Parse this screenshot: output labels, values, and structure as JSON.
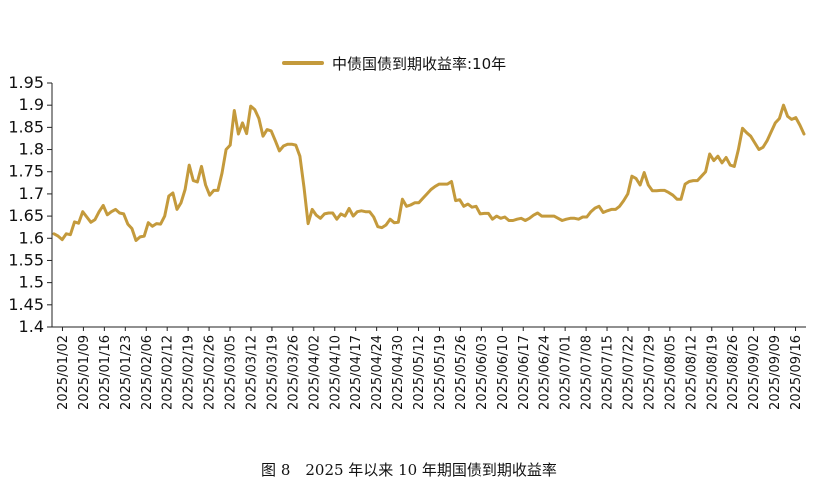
{
  "caption": "图 8　2025 年以来 10 年期国债到期收益率",
  "chart_data": {
    "type": "line",
    "legend": {
      "label": "中债国债到期收益率:10年",
      "position": "top-center"
    },
    "color": "#C49A3C",
    "ylim": [
      1.4,
      1.95
    ],
    "yticks": [
      "1.4",
      "1.45",
      "1.5",
      "1.55",
      "1.6",
      "1.65",
      "1.7",
      "1.75",
      "1.8",
      "1.85",
      "1.9",
      "1.95"
    ],
    "xtick_labels": [
      "2025/01/02",
      "2025/01/09",
      "2025/01/16",
      "2025/01/23",
      "2025/02/06",
      "2025/02/12",
      "2025/02/19",
      "2025/02/26",
      "2025/03/05",
      "2025/03/12",
      "2025/03/19",
      "2025/03/26",
      "2025/04/02",
      "2025/04/10",
      "2025/04/17",
      "2025/04/24",
      "2025/04/30",
      "2025/05/12",
      "2025/05/19",
      "2025/05/26",
      "2025/06/03",
      "2025/06/10",
      "2025/06/17",
      "2025/06/24",
      "2025/07/01",
      "2025/07/08",
      "2025/07/15",
      "2025/07/22",
      "2025/07/29",
      "2025/08/05",
      "2025/08/12",
      "2025/08/19",
      "2025/08/26",
      "2025/09/02",
      "2025/09/09",
      "2025/09/16"
    ],
    "series": [
      {
        "name": "中债国债到期收益率:10年",
        "values": [
          1.61,
          1.605,
          1.597,
          1.61,
          1.608,
          1.637,
          1.634,
          1.66,
          1.648,
          1.636,
          1.642,
          1.66,
          1.674,
          1.653,
          1.66,
          1.665,
          1.657,
          1.655,
          1.632,
          1.622,
          1.595,
          1.603,
          1.605,
          1.635,
          1.627,
          1.633,
          1.632,
          1.65,
          1.695,
          1.702,
          1.665,
          1.68,
          1.71,
          1.765,
          1.73,
          1.727,
          1.762,
          1.72,
          1.697,
          1.708,
          1.708,
          1.747,
          1.8,
          1.81,
          1.888,
          1.835,
          1.86,
          1.836,
          1.898,
          1.89,
          1.87,
          1.83,
          1.845,
          1.842,
          1.82,
          1.797,
          1.808,
          1.812,
          1.812,
          1.81,
          1.785,
          1.715,
          1.633,
          1.665,
          1.652,
          1.645,
          1.655,
          1.657,
          1.657,
          1.643,
          1.655,
          1.65,
          1.667,
          1.65,
          1.66,
          1.662,
          1.66,
          1.66,
          1.648,
          1.626,
          1.624,
          1.63,
          1.643,
          1.635,
          1.636,
          1.688,
          1.672,
          1.675,
          1.68,
          1.68,
          1.69,
          1.7,
          1.71,
          1.717,
          1.722,
          1.722,
          1.722,
          1.728,
          1.685,
          1.687,
          1.672,
          1.677,
          1.67,
          1.672,
          1.655,
          1.656,
          1.656,
          1.643,
          1.65,
          1.645,
          1.648,
          1.64,
          1.64,
          1.643,
          1.645,
          1.64,
          1.645,
          1.652,
          1.657,
          1.65,
          1.65,
          1.65,
          1.65,
          1.645,
          1.64,
          1.643,
          1.645,
          1.645,
          1.643,
          1.648,
          1.648,
          1.66,
          1.668,
          1.672,
          1.658,
          1.662,
          1.665,
          1.665,
          1.672,
          1.685,
          1.7,
          1.74,
          1.735,
          1.72,
          1.748,
          1.72,
          1.707,
          1.707,
          1.708,
          1.708,
          1.703,
          1.697,
          1.688,
          1.688,
          1.722,
          1.728,
          1.73,
          1.73,
          1.74,
          1.75,
          1.79,
          1.775,
          1.785,
          1.77,
          1.782,
          1.765,
          1.762,
          1.8,
          1.848,
          1.838,
          1.83,
          1.815,
          1.8,
          1.805,
          1.82,
          1.84,
          1.86,
          1.87,
          1.9,
          1.875,
          1.868,
          1.872,
          1.855,
          1.835
        ]
      }
    ],
    "grid": false
  }
}
